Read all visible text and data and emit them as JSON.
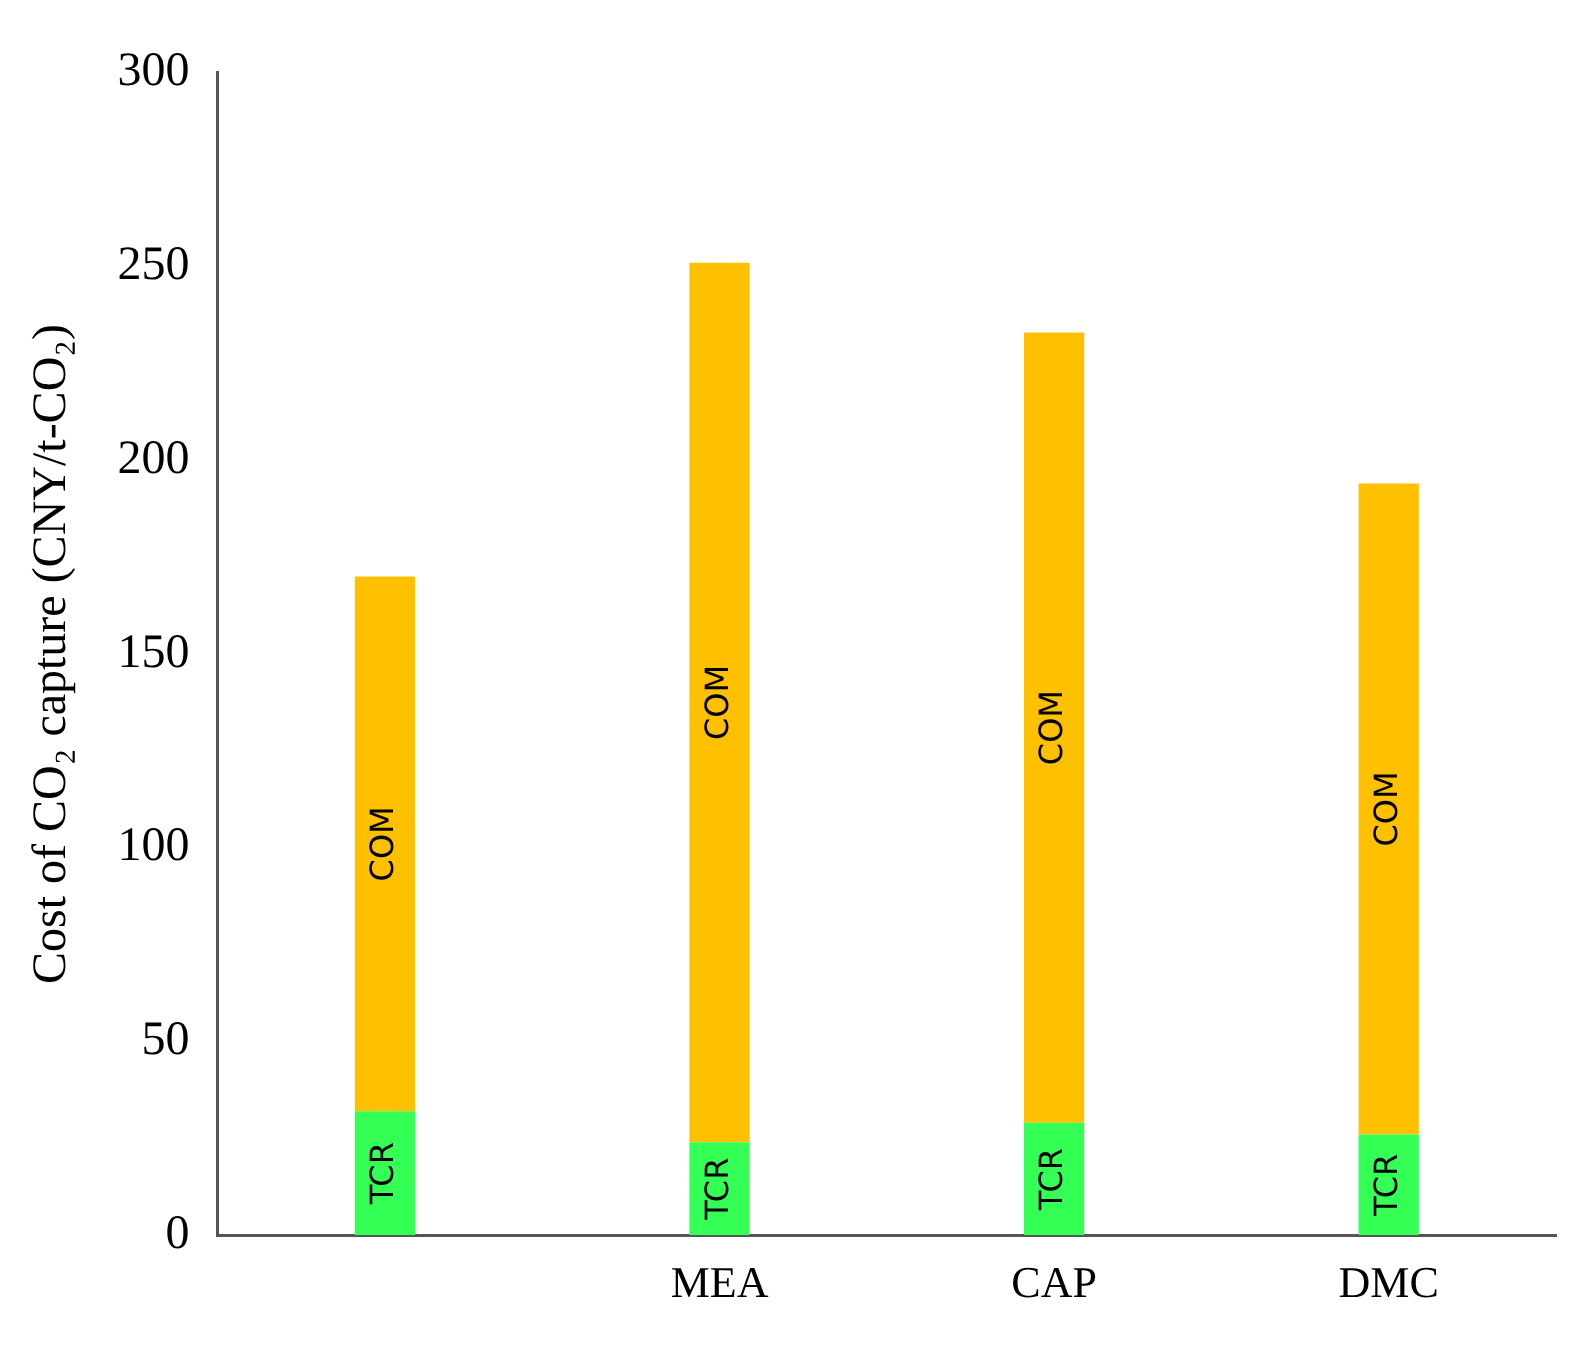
{
  "chart_data": {
    "type": "bar",
    "ylabel": "Cost of CO₂ capture (CNY/t-CO₂)",
    "categories": [
      null,
      "MEA",
      "CAP",
      "DMC"
    ],
    "stacked": true,
    "series": [
      {
        "name": "TCR",
        "color": "#33ff55",
        "values": [
          32,
          24,
          29,
          26
        ]
      },
      {
        "name": "COM",
        "color": "#ffc000",
        "values": [
          138,
          227,
          204,
          168
        ]
      }
    ],
    "ylim": [
      0,
      300
    ],
    "yticks": [
      0,
      50,
      100,
      150,
      200,
      250,
      300
    ],
    "grid": false,
    "legend": false
  }
}
